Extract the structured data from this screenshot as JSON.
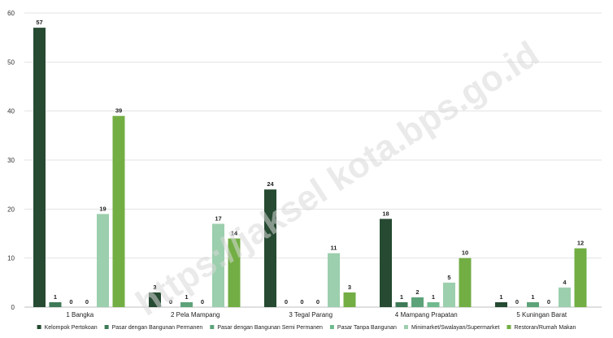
{
  "watermark": "https://jaksel kota.bps.go.id",
  "chart_data": {
    "type": "bar",
    "title": "",
    "xlabel": "",
    "ylabel": "",
    "ylim": [
      0,
      60
    ],
    "yticks": [
      0,
      10,
      20,
      30,
      40,
      50,
      60
    ],
    "grid": true,
    "legend_position": "bottom",
    "categories": [
      "1   Bangka",
      "2   Pela Mampang",
      "3   Tegal Parang",
      "4   Mampang Prapatan",
      "5   Kuningan Barat"
    ],
    "series": [
      {
        "name": "Kelompok Pertokoan",
        "color": "#264a32",
        "values": [
          57,
          3,
          24,
          18,
          1
        ]
      },
      {
        "name": "Pasar dengan Bangunan Permanen",
        "color": "#3e7a57",
        "values": [
          1,
          0,
          0,
          1,
          0
        ]
      },
      {
        "name": "Pasar dengan Bangunan Semi Permanen",
        "color": "#5da37a",
        "values": [
          0,
          1,
          0,
          2,
          1
        ]
      },
      {
        "name": "Pasar Tanpa Bangunan",
        "color": "#6fba8e",
        "values": [
          0,
          0,
          0,
          1,
          0
        ]
      },
      {
        "name": "Minimarket/Swalayan/Supermarket",
        "color": "#9ccfad",
        "values": [
          19,
          17,
          11,
          5,
          4
        ]
      },
      {
        "name": "Restoran/Rumah Makan",
        "color": "#72ae44",
        "values": [
          39,
          14,
          3,
          10,
          12
        ]
      }
    ]
  }
}
